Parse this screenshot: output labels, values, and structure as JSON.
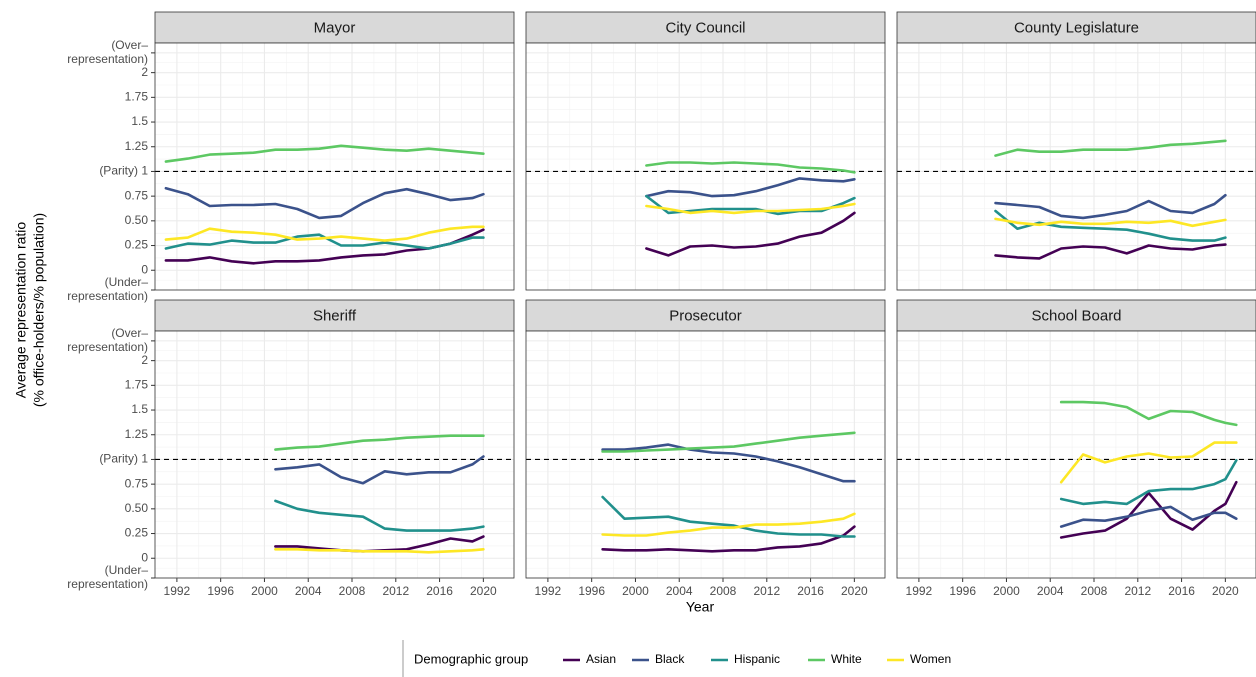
{
  "chart_data": {
    "type": "line",
    "x_label": "Year",
    "y_label": [
      "Average representation ratio",
      "(% office-holders/% population)"
    ],
    "legend_title": "Demographic group",
    "groups": [
      {
        "name": "Asian",
        "color": "#440154"
      },
      {
        "name": "Black",
        "color": "#3b528b"
      },
      {
        "name": "Hispanic",
        "color": "#21908c"
      },
      {
        "name": "White",
        "color": "#5dc863"
      },
      {
        "name": "Women",
        "color": "#fde725"
      }
    ],
    "x": [
      1991,
      1993,
      1995,
      1997,
      1999,
      2001,
      2003,
      2005,
      2007,
      2009,
      2011,
      2013,
      2015,
      2017,
      2019,
      2020,
      2021
    ],
    "xlim": [
      1990,
      2022.8
    ],
    "xticks": [
      1992,
      1996,
      2000,
      2004,
      2008,
      2012,
      2016,
      2020
    ],
    "ylim": [
      -0.2,
      2.3
    ],
    "yticks": [
      {
        "value": -0.2,
        "label": "(Under–representation)"
      },
      0,
      0.25,
      {
        "value": 0.5,
        "label": "0.50"
      },
      0.75,
      {
        "value": 1,
        "label": "(Parity) 1"
      },
      1.25,
      1.5,
      1.75,
      2,
      {
        "value": 2.2,
        "label": "(Over–representation)"
      }
    ],
    "reference_line": 1,
    "grid": true,
    "panels": [
      {
        "title": "Mayor",
        "series": [
          [
            0.1,
            0.1,
            0.13,
            0.09,
            0.07,
            0.09,
            0.09,
            0.1,
            0.13,
            0.15,
            0.16,
            0.2,
            0.22,
            0.27,
            0.36,
            0.41,
            null
          ],
          [
            0.83,
            0.77,
            0.65,
            0.66,
            0.66,
            0.67,
            0.62,
            0.53,
            0.55,
            0.68,
            0.78,
            0.82,
            0.77,
            0.71,
            0.73,
            0.77,
            null
          ],
          [
            0.22,
            0.27,
            0.26,
            0.3,
            0.28,
            0.28,
            0.34,
            0.36,
            0.25,
            0.25,
            0.28,
            0.25,
            0.22,
            0.27,
            0.33,
            0.33,
            null
          ],
          [
            1.1,
            1.13,
            1.17,
            1.18,
            1.19,
            1.22,
            1.22,
            1.23,
            1.26,
            1.24,
            1.22,
            1.21,
            1.23,
            1.21,
            1.19,
            1.18,
            null
          ],
          [
            0.31,
            0.33,
            0.42,
            0.39,
            0.38,
            0.36,
            0.31,
            0.32,
            0.34,
            0.32,
            0.3,
            0.32,
            0.38,
            0.42,
            0.44,
            0.44,
            null
          ]
        ]
      },
      {
        "title": "City Council",
        "series": [
          [
            null,
            null,
            null,
            null,
            null,
            0.22,
            0.15,
            0.24,
            0.25,
            0.23,
            0.24,
            0.27,
            0.34,
            0.38,
            0.5,
            0.58,
            null
          ],
          [
            null,
            null,
            null,
            null,
            null,
            0.75,
            0.8,
            0.79,
            0.75,
            0.76,
            0.8,
            0.86,
            0.93,
            0.91,
            0.9,
            0.92,
            null
          ],
          [
            null,
            null,
            null,
            null,
            null,
            0.75,
            0.58,
            0.6,
            0.62,
            0.62,
            0.62,
            0.57,
            0.6,
            0.6,
            0.68,
            0.73,
            null
          ],
          [
            null,
            null,
            null,
            null,
            null,
            1.06,
            1.09,
            1.09,
            1.08,
            1.09,
            1.08,
            1.07,
            1.04,
            1.03,
            1.01,
            0.99,
            null
          ],
          [
            null,
            null,
            null,
            null,
            null,
            0.65,
            0.62,
            0.58,
            0.6,
            0.58,
            0.6,
            0.6,
            0.61,
            0.62,
            0.65,
            0.67,
            null
          ]
        ]
      },
      {
        "title": "County Legislature",
        "series": [
          [
            null,
            null,
            null,
            null,
            0.15,
            0.13,
            0.12,
            0.22,
            0.24,
            0.23,
            0.17,
            0.25,
            0.22,
            0.21,
            0.25,
            0.26,
            null
          ],
          [
            null,
            null,
            null,
            null,
            0.68,
            0.66,
            0.64,
            0.55,
            0.53,
            0.56,
            0.6,
            0.7,
            0.6,
            0.58,
            0.67,
            0.76,
            null
          ],
          [
            null,
            null,
            null,
            null,
            0.6,
            0.42,
            0.48,
            0.44,
            0.43,
            0.42,
            0.41,
            0.37,
            0.32,
            0.3,
            0.3,
            0.33,
            null
          ],
          [
            null,
            null,
            null,
            null,
            1.16,
            1.22,
            1.2,
            1.2,
            1.22,
            1.22,
            1.22,
            1.24,
            1.27,
            1.28,
            1.3,
            1.31,
            null
          ],
          [
            null,
            null,
            null,
            null,
            0.52,
            0.48,
            0.46,
            0.49,
            0.47,
            0.47,
            0.49,
            0.48,
            0.5,
            0.45,
            0.49,
            0.51,
            null
          ]
        ]
      },
      {
        "title": "Sheriff",
        "series": [
          [
            null,
            null,
            null,
            null,
            null,
            0.12,
            0.12,
            0.1,
            0.08,
            0.07,
            0.08,
            0.09,
            0.14,
            0.2,
            0.17,
            0.22,
            null
          ],
          [
            null,
            null,
            null,
            null,
            null,
            0.9,
            0.92,
            0.95,
            0.82,
            0.76,
            0.88,
            0.85,
            0.87,
            0.87,
            0.95,
            1.03,
            null
          ],
          [
            null,
            null,
            null,
            null,
            null,
            0.58,
            0.5,
            0.46,
            0.44,
            0.42,
            0.3,
            0.28,
            0.28,
            0.28,
            0.3,
            0.32,
            null
          ],
          [
            null,
            null,
            null,
            null,
            null,
            1.1,
            1.12,
            1.13,
            1.16,
            1.19,
            1.2,
            1.22,
            1.23,
            1.24,
            1.24,
            1.24,
            null
          ],
          [
            null,
            null,
            null,
            null,
            null,
            0.09,
            0.09,
            0.08,
            0.08,
            0.07,
            0.07,
            0.07,
            0.06,
            0.07,
            0.08,
            0.09,
            null
          ]
        ]
      },
      {
        "title": "Prosecutor",
        "series": [
          [
            null,
            null,
            null,
            0.09,
            0.08,
            0.08,
            0.09,
            0.08,
            0.07,
            0.08,
            0.08,
            0.11,
            0.12,
            0.15,
            0.23,
            0.32,
            null
          ],
          [
            null,
            null,
            null,
            1.1,
            1.1,
            1.12,
            1.15,
            1.1,
            1.07,
            1.06,
            1.03,
            0.98,
            0.92,
            0.85,
            0.78,
            0.78,
            null
          ],
          [
            null,
            null,
            null,
            0.62,
            0.4,
            0.41,
            0.42,
            0.37,
            0.35,
            0.33,
            0.28,
            0.25,
            0.24,
            0.24,
            0.22,
            0.22,
            null
          ],
          [
            null,
            null,
            null,
            1.08,
            1.08,
            1.09,
            1.1,
            1.11,
            1.12,
            1.13,
            1.16,
            1.19,
            1.22,
            1.24,
            1.26,
            1.27,
            null
          ],
          [
            null,
            null,
            null,
            0.24,
            0.23,
            0.23,
            0.26,
            0.28,
            0.31,
            0.31,
            0.34,
            0.34,
            0.35,
            0.37,
            0.4,
            0.45,
            null
          ]
        ]
      },
      {
        "title": "School Board",
        "series": [
          [
            null,
            null,
            null,
            null,
            null,
            null,
            null,
            0.21,
            0.25,
            0.28,
            0.4,
            0.66,
            0.4,
            0.29,
            0.48,
            0.55,
            0.77
          ],
          [
            null,
            null,
            null,
            null,
            null,
            null,
            null,
            0.32,
            0.39,
            0.38,
            0.42,
            0.48,
            0.52,
            0.39,
            0.46,
            0.46,
            0.4
          ],
          [
            null,
            null,
            null,
            null,
            null,
            null,
            null,
            0.6,
            0.55,
            0.57,
            0.55,
            0.68,
            0.7,
            0.7,
            0.75,
            0.8,
            0.99
          ],
          [
            null,
            null,
            null,
            null,
            null,
            null,
            null,
            1.58,
            1.58,
            1.57,
            1.53,
            1.41,
            1.49,
            1.48,
            1.4,
            1.37,
            1.35
          ],
          [
            null,
            null,
            null,
            null,
            null,
            null,
            null,
            0.77,
            1.05,
            0.97,
            1.03,
            1.06,
            1.02,
            1.03,
            1.17,
            1.17,
            1.17
          ]
        ]
      }
    ]
  }
}
